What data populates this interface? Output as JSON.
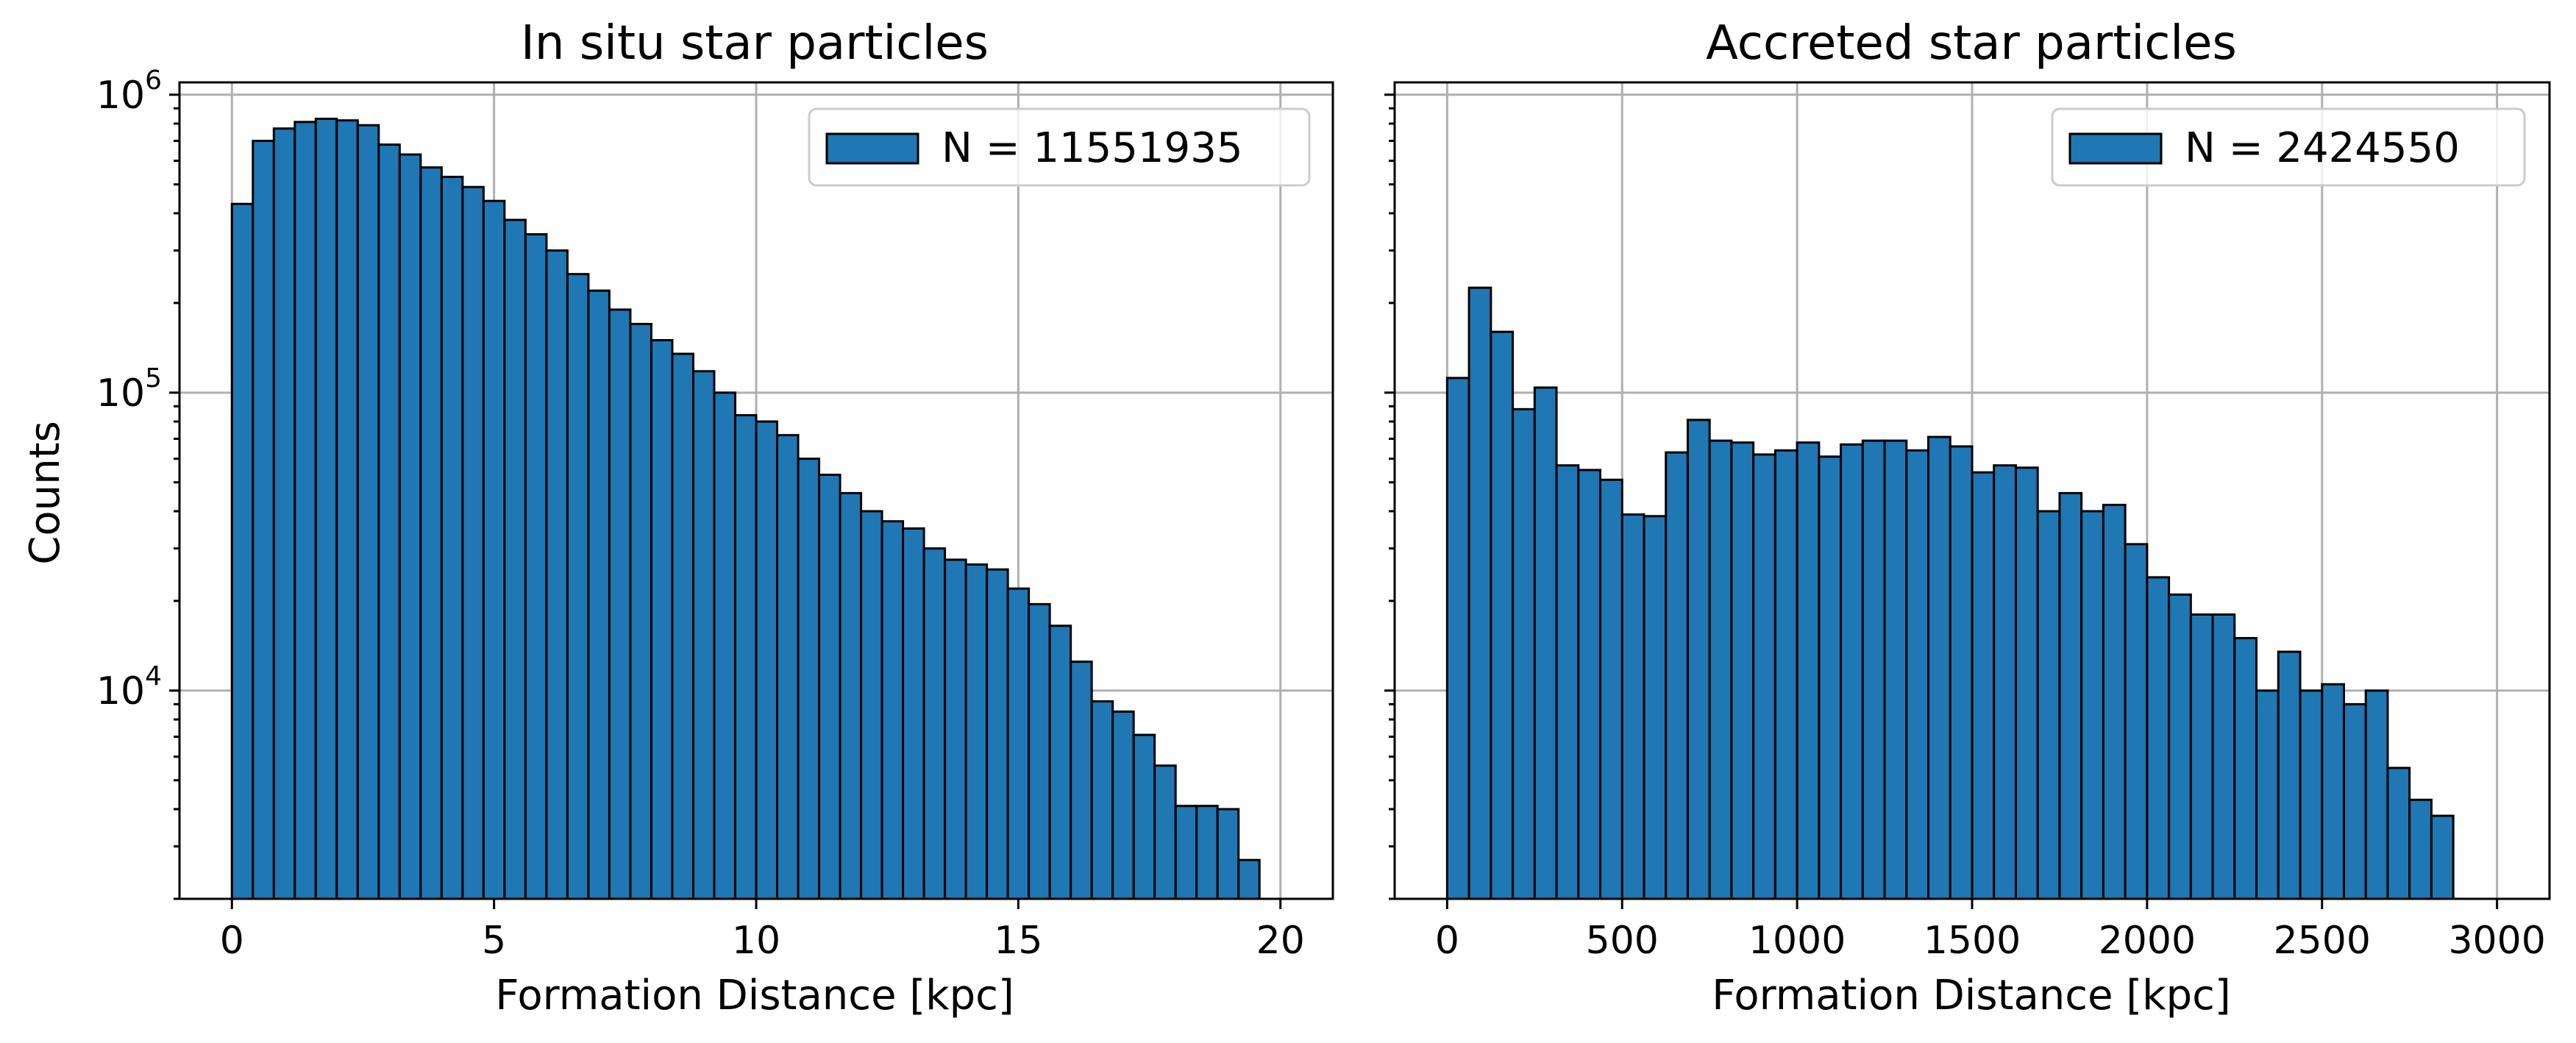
{
  "chart_data": [
    {
      "type": "bar",
      "title": "In situ star particles",
      "xlabel": "Formation Distance [kpc]",
      "ylabel": "Counts",
      "xscale": "linear",
      "yscale": "log",
      "xlim": [
        -1,
        21
      ],
      "ylim": [
        2000,
        1100000
      ],
      "xticks": [
        0,
        5,
        10,
        15,
        20
      ],
      "xtick_labels": [
        "0",
        "5",
        "10",
        "15",
        "20"
      ],
      "yticks": [
        10000,
        100000,
        1000000
      ],
      "ytick_labels": [
        {
          "base": "10",
          "exp": "4"
        },
        {
          "base": "10",
          "exp": "5"
        },
        {
          "base": "10",
          "exp": "6"
        }
      ],
      "grid": true,
      "legend": {
        "label": "N = 11551935",
        "placement": "top-right"
      },
      "bar_color": "#1f77b4",
      "bin_edges_start": 0,
      "bin_width": 0.4,
      "values": [
        430000,
        700000,
        770000,
        810000,
        830000,
        820000,
        790000,
        680000,
        630000,
        570000,
        530000,
        490000,
        440000,
        380000,
        340000,
        300000,
        250000,
        220000,
        190000,
        170000,
        150000,
        135000,
        118000,
        100000,
        84000,
        80000,
        72000,
        60000,
        53000,
        46000,
        40000,
        37000,
        35000,
        30000,
        27500,
        26500,
        25500,
        22000,
        19500,
        16500,
        12500,
        9200,
        8500,
        7100,
        5600,
        4100,
        4100,
        4000,
        2700
      ]
    },
    {
      "type": "bar",
      "title": "Accreted star particles",
      "xlabel": "Formation Distance [kpc]",
      "ylabel": "",
      "xscale": "linear",
      "yscale": "log",
      "xlim": [
        -150,
        3150
      ],
      "ylim": [
        2000,
        1100000
      ],
      "xticks": [
        0,
        500,
        1000,
        1500,
        2000,
        2500,
        3000
      ],
      "xtick_labels": [
        "0",
        "500",
        "1000",
        "1500",
        "2000",
        "2500",
        "3000"
      ],
      "yticks": [
        10000,
        100000,
        1000000
      ],
      "ytick_labels": [],
      "grid": true,
      "legend": {
        "label": "N = 2424550",
        "placement": "top-right"
      },
      "bar_color": "#1f77b4",
      "bin_edges_start": 0,
      "bin_width": 62.5,
      "values": [
        112000,
        225000,
        160000,
        88000,
        104000,
        57000,
        55000,
        51000,
        39000,
        38500,
        63000,
        81000,
        69000,
        68000,
        62000,
        64000,
        68000,
        61000,
        67000,
        69000,
        69000,
        64000,
        71000,
        66000,
        54000,
        57000,
        56000,
        40000,
        46000,
        40000,
        42000,
        31000,
        24000,
        21000,
        18000,
        18000,
        15000,
        10000,
        13500,
        10000,
        10500,
        9000,
        10000,
        5500,
        4300,
        3800
      ]
    }
  ]
}
